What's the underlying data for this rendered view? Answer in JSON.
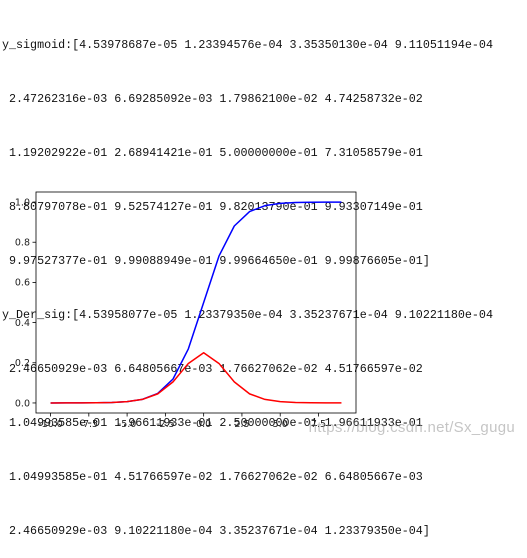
{
  "console": {
    "lines": [
      "y_sigmoid:[4.53978687e-05 1.23394576e-04 3.35350130e-04 9.11051194e-04",
      " 2.47262316e-03 6.69285092e-03 1.79862100e-02 4.74258732e-02",
      " 1.19202922e-01 2.68941421e-01 5.00000000e-01 7.31058579e-01",
      " 8.80797078e-01 9.52574127e-01 9.82013790e-01 9.93307149e-01",
      " 9.97527377e-01 9.99088949e-01 9.99664650e-01 9.99876605e-01]",
      "y_Der_sig:[4.53958077e-05 1.23379350e-04 3.35237671e-04 9.10221180e-04",
      " 2.46650929e-03 6.64805667e-03 1.76627062e-02 4.51766597e-02",
      " 1.04993585e-01 1.96611933e-01 2.50000000e-01 1.96611933e-01",
      " 1.04993585e-01 4.51766597e-02 1.76627062e-02 6.64805667e-03",
      " 2.46650929e-03 9.10221180e-04 3.35237671e-04 1.23379350e-04]"
    ]
  },
  "watermark": "https://blog.csdn.net/Sx_gugu",
  "chart_data": {
    "type": "line",
    "x": [
      -10,
      -9,
      -8,
      -7,
      -6,
      -5,
      -4,
      -3,
      -2,
      -1,
      0,
      1,
      2,
      3,
      4,
      5,
      6,
      7,
      8,
      9
    ],
    "series": [
      {
        "color": "#0000ff",
        "values": [
          4.53978687e-05,
          0.000123394576,
          0.00033535013,
          0.000911051194,
          0.00247262316,
          0.00669285092,
          0.01798621,
          0.0474258732,
          0.119202922,
          0.268941421,
          0.5,
          0.731058579,
          0.880797078,
          0.952574127,
          0.98201379,
          0.993307149,
          0.997527377,
          0.999088949,
          0.99966465,
          0.999876605
        ]
      },
      {
        "color": "#ff0000",
        "values": [
          4.53958077e-05,
          0.00012337935,
          0.000335237671,
          0.00091022118,
          0.00246650929,
          0.00664805667,
          0.0176627062,
          0.0451766597,
          0.104993585,
          0.196611933,
          0.25,
          0.196611933,
          0.104993585,
          0.0451766597,
          0.0176627062,
          0.00664805667,
          0.00246650929,
          0.00091022118,
          0.000335237671,
          0.00012337935
        ]
      }
    ],
    "xticks": [
      "-10.0",
      "-7.5",
      "-5.0",
      "-2.5",
      "0.0",
      "2.5",
      "5.0",
      "7.5"
    ],
    "yticks": [
      "0.0",
      "0.2",
      "0.4",
      "0.6",
      "0.8",
      "1.0"
    ],
    "xlim": [
      -10.95,
      9.95
    ],
    "ylim": [
      -0.05,
      1.05
    ],
    "grid": false
  }
}
